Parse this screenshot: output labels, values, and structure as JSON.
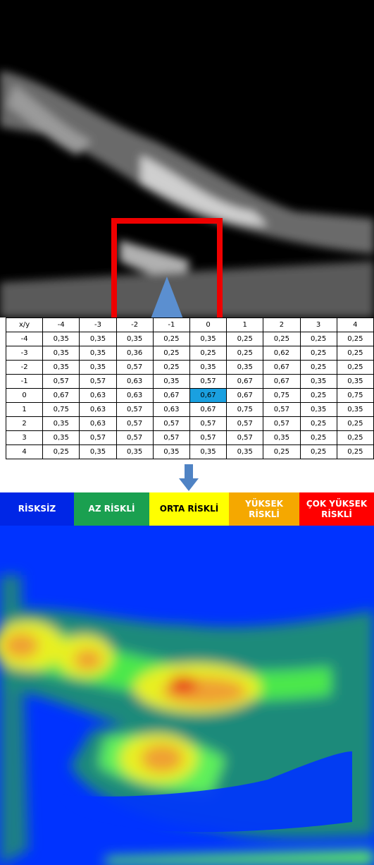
{
  "table": {
    "header": [
      "x/y",
      "-4",
      "-3",
      "-2",
      "-1",
      "0",
      "1",
      "2",
      "3",
      "4"
    ],
    "rows": [
      [
        "-4",
        "0,35",
        "0,35",
        "0,35",
        "0,25",
        "0,35",
        "0,25",
        "0,25",
        "0,25",
        "0,25"
      ],
      [
        "-3",
        "0,35",
        "0,35",
        "0,36",
        "0,25",
        "0,25",
        "0,25",
        "0,62",
        "0,25",
        "0,25"
      ],
      [
        "-2",
        "0,35",
        "0,35",
        "0,57",
        "0,25",
        "0,35",
        "0,35",
        "0,67",
        "0,25",
        "0,25"
      ],
      [
        "-1",
        "0,57",
        "0,57",
        "0,63",
        "0,35",
        "0,57",
        "0,67",
        "0,67",
        "0,35",
        "0,35"
      ],
      [
        "0",
        "0,67",
        "0,63",
        "0,63",
        "0,67",
        "0,67",
        "0,67",
        "0,75",
        "0,25",
        "0,75"
      ],
      [
        "1",
        "0,75",
        "0,63",
        "0,57",
        "0,63",
        "0,67",
        "0,75",
        "0,57",
        "0,35",
        "0,35"
      ],
      [
        "2",
        "0,35",
        "0,63",
        "0,57",
        "0,57",
        "0,57",
        "0,57",
        "0,57",
        "0,25",
        "0,25"
      ],
      [
        "3",
        "0,35",
        "0,57",
        "0,57",
        "0,57",
        "0,57",
        "0,57",
        "0,35",
        "0,25",
        "0,25"
      ],
      [
        "4",
        "0,25",
        "0,35",
        "0,35",
        "0,35",
        "0,35",
        "0,35",
        "0,25",
        "0,25",
        "0,25"
      ]
    ]
  },
  "legend": {
    "items": [
      "RİSKSİZ",
      "AZ RİSKLİ",
      "ORTA RİSKLİ",
      "YÜKSEK RİSKLİ",
      "ÇOK YÜKSEK RİSKLİ"
    ]
  }
}
